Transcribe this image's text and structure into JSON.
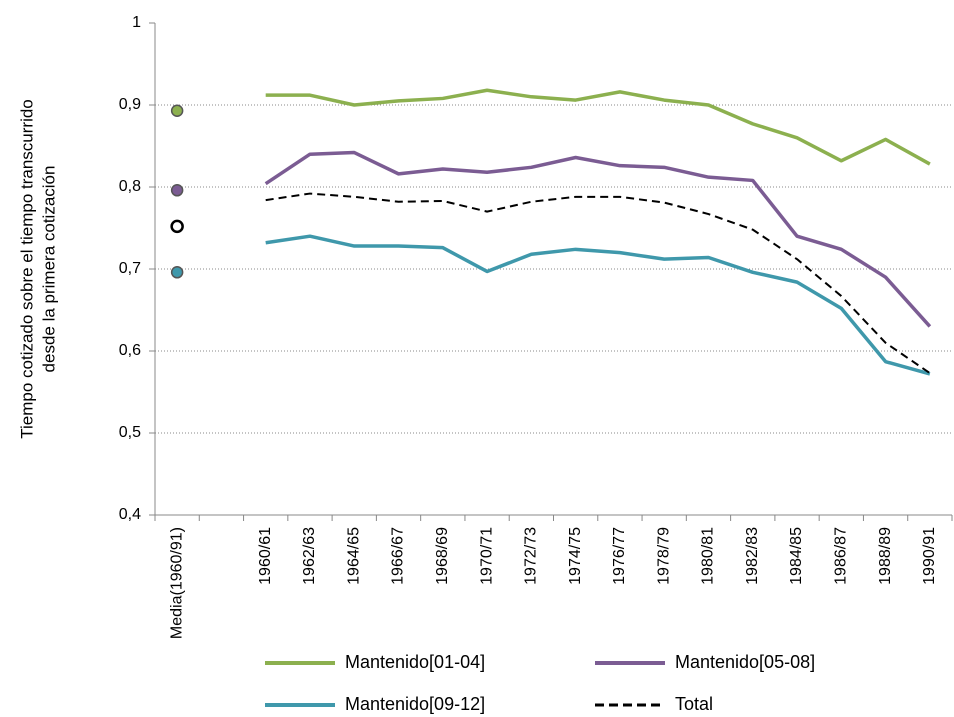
{
  "chart_data": {
    "type": "line",
    "ylabel": [
      "Tiempo cotizado sobre el tiempo transcurrido",
      "desde la primera cotización"
    ],
    "categories": [
      "Media(1960/91)",
      null,
      "1960/61",
      "1962/63",
      "1964/65",
      "1966/67",
      "1968/69",
      "1970/71",
      "1972/73",
      "1974/75",
      "1976/77",
      "1978/79",
      "1980/81",
      "1982/83",
      "1984/85",
      "1986/87",
      "1988/89",
      "1990/91"
    ],
    "series": [
      {
        "name": "Mantenido[01-04]",
        "color": "#8cb04f",
        "dashed": false,
        "values": [
          0.893,
          null,
          0.912,
          0.912,
          0.9,
          0.905,
          0.908,
          0.918,
          0.91,
          0.906,
          0.916,
          0.906,
          0.9,
          0.877,
          0.86,
          0.832,
          0.858,
          0.828
        ]
      },
      {
        "name": "Mantenido[05-08]",
        "color": "#7b5c93",
        "dashed": false,
        "values": [
          0.796,
          null,
          0.804,
          0.84,
          0.842,
          0.816,
          0.822,
          0.818,
          0.824,
          0.836,
          0.826,
          0.824,
          0.812,
          0.808,
          0.74,
          0.724,
          0.69,
          0.63
        ]
      },
      {
        "name": "Mantenido[09-12]",
        "color": "#3f98ab",
        "dashed": false,
        "values": [
          0.696,
          null,
          0.732,
          0.74,
          0.728,
          0.728,
          0.726,
          0.697,
          0.718,
          0.724,
          0.72,
          0.712,
          0.714,
          0.696,
          0.684,
          0.652,
          0.587,
          0.572
        ]
      },
      {
        "name": "Total",
        "color": "#000000",
        "dashed": true,
        "values": [
          0.752,
          null,
          0.784,
          0.792,
          0.788,
          0.782,
          0.783,
          0.77,
          0.782,
          0.788,
          0.788,
          0.781,
          0.767,
          0.748,
          0.712,
          0.667,
          0.61,
          0.573
        ]
      }
    ],
    "ylim": [
      0.4,
      1
    ],
    "yticks": [
      {
        "value": 0.4,
        "label": "0,4"
      },
      {
        "value": 0.5,
        "label": "0,5"
      },
      {
        "value": 0.6,
        "label": "0,6"
      },
      {
        "value": 0.7,
        "label": "0,7"
      },
      {
        "value": 0.8,
        "label": "0,8"
      },
      {
        "value": 0.9,
        "label": "0,9"
      },
      1
    ],
    "grid": true,
    "legend": "bottom"
  }
}
